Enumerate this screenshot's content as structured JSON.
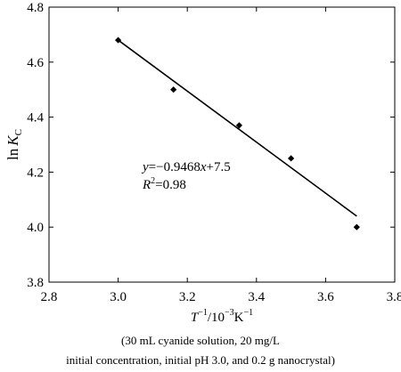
{
  "chart_data": {
    "type": "scatter",
    "xlabel": {
      "main": "T",
      "sup1": "−1",
      "mid": "/10",
      "sup2": "−3",
      "end": "K",
      "sup3": "−1"
    },
    "ylabel": {
      "main": "ln",
      "var": "K",
      "sub": "C"
    },
    "xlim": [
      2.8,
      3.8
    ],
    "ylim": [
      3.8,
      4.8
    ],
    "xticks": [
      2.8,
      3.0,
      3.2,
      3.4,
      3.6,
      3.8
    ],
    "yticks": [
      3.8,
      4.0,
      4.2,
      4.4,
      4.6,
      4.8
    ],
    "xtick_labels": [
      "2.8",
      "3.0",
      "3.2",
      "3.4",
      "3.6",
      "3.8"
    ],
    "ytick_labels": [
      "3.8",
      "4.0",
      "4.2",
      "4.4",
      "4.6",
      "4.8"
    ],
    "points": [
      {
        "x": 3.0,
        "y": 4.68
      },
      {
        "x": 3.16,
        "y": 4.5
      },
      {
        "x": 3.35,
        "y": 4.37
      },
      {
        "x": 3.5,
        "y": 4.25
      },
      {
        "x": 3.69,
        "y": 4.0
      }
    ],
    "fit_line": {
      "x": [
        3.0,
        3.69
      ],
      "y": [
        4.68,
        4.04
      ]
    },
    "annotation": {
      "equation": {
        "y": "y",
        "eq": "=−0.9468",
        "x": "x",
        "rest": "+7.5"
      },
      "r2": {
        "r": "R",
        "sup": "2",
        "rest": "=0.98"
      }
    },
    "grid": false,
    "legend": "none"
  },
  "caption": {
    "line1": "(30 mL cyanide solution, 20 mg/L",
    "line2": "initial concentration, initial pH 3.0, and 0.2 g nanocrystal)"
  }
}
